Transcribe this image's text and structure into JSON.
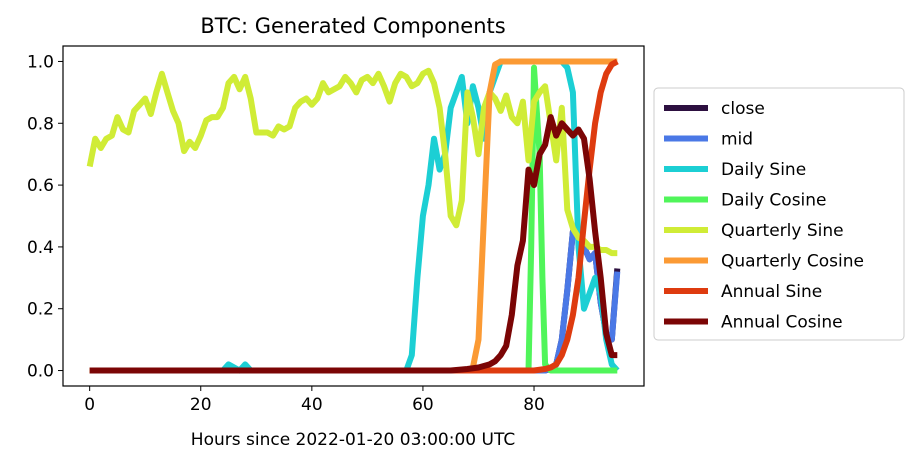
{
  "chart_data": {
    "type": "line",
    "title": "BTC: Generated Components",
    "xlabel": "Hours since 2022-01-20 03:00:00 UTC",
    "ylabel": "",
    "xlim": [
      -4.8,
      99.8
    ],
    "ylim": [
      -0.05,
      1.05
    ],
    "xticks": [
      "0",
      "20",
      "40",
      "60",
      "80"
    ],
    "yticks": [
      "0.0",
      "0.2",
      "0.4",
      "0.6",
      "0.8",
      "1.0"
    ],
    "legend_position": "right-outside",
    "grid": false,
    "series": [
      {
        "name": "close",
        "color": "#2d1040",
        "points": [
          [
            0,
            0
          ],
          [
            10,
            0
          ],
          [
            20,
            0
          ],
          [
            30,
            0
          ],
          [
            40,
            0
          ],
          [
            50,
            0
          ],
          [
            60,
            0
          ],
          [
            70,
            0
          ],
          [
            78,
            0
          ],
          [
            82,
            0
          ],
          [
            83,
            0.005
          ],
          [
            84,
            0.02
          ],
          [
            85,
            0.1
          ],
          [
            86,
            0.26
          ],
          [
            87,
            0.45
          ],
          [
            88,
            0.43
          ],
          [
            89,
            0.4
          ],
          [
            90,
            0.36
          ],
          [
            91,
            0.38
          ],
          [
            92,
            0.22
          ],
          [
            93,
            0.12
          ],
          [
            94,
            0.1
          ],
          [
            95,
            0.33
          ]
        ]
      },
      {
        "name": "mid",
        "color": "#4a78e6",
        "points": [
          [
            0,
            0
          ],
          [
            10,
            0
          ],
          [
            20,
            0
          ],
          [
            30,
            0
          ],
          [
            40,
            0
          ],
          [
            50,
            0
          ],
          [
            60,
            0
          ],
          [
            70,
            0
          ],
          [
            78,
            0
          ],
          [
            82,
            0
          ],
          [
            83,
            0.005
          ],
          [
            84,
            0.02
          ],
          [
            85,
            0.1
          ],
          [
            86,
            0.26
          ],
          [
            87,
            0.45
          ],
          [
            88,
            0.43
          ],
          [
            89,
            0.4
          ],
          [
            90,
            0.36
          ],
          [
            91,
            0.38
          ],
          [
            92,
            0.22
          ],
          [
            93,
            0.12
          ],
          [
            94,
            0.1
          ],
          [
            95,
            0.32
          ]
        ]
      },
      {
        "name": "Daily Sine",
        "color": "#1ccfd4",
        "points": [
          [
            0,
            0
          ],
          [
            24,
            0
          ],
          [
            25,
            0.02
          ],
          [
            26,
            0.01
          ],
          [
            27,
            0
          ],
          [
            28,
            0.02
          ],
          [
            29,
            0
          ],
          [
            40,
            0
          ],
          [
            57,
            0
          ],
          [
            58,
            0.05
          ],
          [
            59,
            0.3
          ],
          [
            60,
            0.5
          ],
          [
            61,
            0.6
          ],
          [
            62,
            0.75
          ],
          [
            63,
            0.65
          ],
          [
            64,
            0.7
          ],
          [
            65,
            0.85
          ],
          [
            66,
            0.9
          ],
          [
            67,
            0.95
          ],
          [
            68,
            0.8
          ],
          [
            69,
            0.92
          ],
          [
            70,
            0.85
          ],
          [
            71,
            0.75
          ],
          [
            72,
            0.9
          ],
          [
            73,
            0.95
          ],
          [
            74,
            1.0
          ],
          [
            80,
            1.0
          ],
          [
            85,
            1.0
          ],
          [
            86,
            0.98
          ],
          [
            87,
            0.9
          ],
          [
            88,
            0.4
          ],
          [
            89,
            0.2
          ],
          [
            90,
            0.25
          ],
          [
            91,
            0.3
          ],
          [
            92,
            0.25
          ],
          [
            93,
            0.1
          ],
          [
            94,
            0.02
          ],
          [
            95,
            0
          ]
        ]
      },
      {
        "name": "Daily Cosine",
        "color": "#50f55a",
        "points": [
          [
            0,
            0
          ],
          [
            20,
            0
          ],
          [
            40,
            0
          ],
          [
            60,
            0
          ],
          [
            70,
            0
          ],
          [
            79,
            0
          ],
          [
            79.5,
            0.4
          ],
          [
            80,
            0.98
          ],
          [
            81,
            0.7
          ],
          [
            81.5,
            0.3
          ],
          [
            82,
            0.02
          ],
          [
            83,
            0
          ],
          [
            90,
            0
          ],
          [
            95,
            0
          ]
        ]
      },
      {
        "name": "Quarterly Sine",
        "color": "#d0ec36",
        "points": [
          [
            0,
            0.66
          ],
          [
            1,
            0.75
          ],
          [
            2,
            0.72
          ],
          [
            3,
            0.75
          ],
          [
            4,
            0.76
          ],
          [
            5,
            0.82
          ],
          [
            6,
            0.78
          ],
          [
            7,
            0.77
          ],
          [
            8,
            0.84
          ],
          [
            9,
            0.86
          ],
          [
            10,
            0.88
          ],
          [
            11,
            0.83
          ],
          [
            12,
            0.9
          ],
          [
            13,
            0.96
          ],
          [
            14,
            0.9
          ],
          [
            15,
            0.84
          ],
          [
            16,
            0.8
          ],
          [
            17,
            0.71
          ],
          [
            18,
            0.74
          ],
          [
            19,
            0.72
          ],
          [
            20,
            0.76
          ],
          [
            21,
            0.81
          ],
          [
            22,
            0.82
          ],
          [
            23,
            0.82
          ],
          [
            24,
            0.85
          ],
          [
            25,
            0.93
          ],
          [
            26,
            0.95
          ],
          [
            27,
            0.91
          ],
          [
            28,
            0.95
          ],
          [
            29,
            0.88
          ],
          [
            30,
            0.77
          ],
          [
            31,
            0.77
          ],
          [
            32,
            0.77
          ],
          [
            33,
            0.76
          ],
          [
            34,
            0.79
          ],
          [
            35,
            0.78
          ],
          [
            36,
            0.79
          ],
          [
            37,
            0.85
          ],
          [
            38,
            0.87
          ],
          [
            39,
            0.88
          ],
          [
            40,
            0.86
          ],
          [
            41,
            0.88
          ],
          [
            42,
            0.93
          ],
          [
            43,
            0.9
          ],
          [
            44,
            0.91
          ],
          [
            45,
            0.92
          ],
          [
            46,
            0.95
          ],
          [
            47,
            0.93
          ],
          [
            48,
            0.9
          ],
          [
            49,
            0.94
          ],
          [
            50,
            0.95
          ],
          [
            51,
            0.93
          ],
          [
            52,
            0.96
          ],
          [
            53,
            0.92
          ],
          [
            54,
            0.87
          ],
          [
            55,
            0.93
          ],
          [
            56,
            0.96
          ],
          [
            57,
            0.95
          ],
          [
            58,
            0.92
          ],
          [
            59,
            0.93
          ],
          [
            60,
            0.96
          ],
          [
            61,
            0.97
          ],
          [
            62,
            0.93
          ],
          [
            63,
            0.85
          ],
          [
            64,
            0.7
          ],
          [
            65,
            0.5
          ],
          [
            66,
            0.47
          ],
          [
            67,
            0.55
          ],
          [
            68,
            0.9
          ],
          [
            69,
            0.82
          ],
          [
            70,
            0.7
          ],
          [
            71,
            0.85
          ],
          [
            72,
            0.9
          ],
          [
            73,
            0.88
          ],
          [
            74,
            0.84
          ],
          [
            75,
            0.89
          ],
          [
            76,
            0.82
          ],
          [
            77,
            0.8
          ],
          [
            78,
            0.87
          ],
          [
            79,
            0.68
          ],
          [
            80,
            0.87
          ],
          [
            81,
            0.9
          ],
          [
            82,
            0.92
          ],
          [
            83,
            0.8
          ],
          [
            84,
            0.68
          ],
          [
            85,
            0.85
          ],
          [
            86,
            0.52
          ],
          [
            87,
            0.46
          ],
          [
            88,
            0.43
          ],
          [
            89,
            0.42
          ],
          [
            90,
            0.4
          ],
          [
            91,
            0.4
          ],
          [
            92,
            0.39
          ],
          [
            93,
            0.39
          ],
          [
            94,
            0.38
          ],
          [
            95,
            0.38
          ]
        ]
      },
      {
        "name": "Quarterly Cosine",
        "color": "#fb9a34",
        "points": [
          [
            0,
            0
          ],
          [
            20,
            0
          ],
          [
            40,
            0
          ],
          [
            60,
            0
          ],
          [
            68,
            0
          ],
          [
            69,
            0.01
          ],
          [
            70,
            0.1
          ],
          [
            71,
            0.5
          ],
          [
            72,
            0.9
          ],
          [
            73,
            0.99
          ],
          [
            74,
            1.0
          ],
          [
            80,
            1.0
          ],
          [
            90,
            1.0
          ],
          [
            95,
            1.0
          ]
        ]
      },
      {
        "name": "Annual Sine",
        "color": "#de3b0f",
        "points": [
          [
            0,
            0
          ],
          [
            20,
            0
          ],
          [
            40,
            0
          ],
          [
            60,
            0
          ],
          [
            70,
            0
          ],
          [
            80,
            0
          ],
          [
            82,
            0.005
          ],
          [
            83,
            0.01
          ],
          [
            84,
            0.02
          ],
          [
            85,
            0.05
          ],
          [
            86,
            0.1
          ],
          [
            87,
            0.18
          ],
          [
            88,
            0.3
          ],
          [
            89,
            0.48
          ],
          [
            90,
            0.65
          ],
          [
            91,
            0.8
          ],
          [
            92,
            0.9
          ],
          [
            93,
            0.96
          ],
          [
            94,
            0.99
          ],
          [
            95,
            1.0
          ]
        ]
      },
      {
        "name": "Annual Cosine",
        "color": "#7b0505",
        "points": [
          [
            0,
            0
          ],
          [
            20,
            0
          ],
          [
            40,
            0
          ],
          [
            60,
            0
          ],
          [
            65,
            0
          ],
          [
            68,
            0.005
          ],
          [
            70,
            0.01
          ],
          [
            72,
            0.02
          ],
          [
            73,
            0.03
          ],
          [
            74,
            0.05
          ],
          [
            75,
            0.08
          ],
          [
            76,
            0.18
          ],
          [
            77,
            0.34
          ],
          [
            78,
            0.42
          ],
          [
            79,
            0.65
          ],
          [
            80,
            0.6
          ],
          [
            81,
            0.7
          ],
          [
            82,
            0.73
          ],
          [
            83,
            0.82
          ],
          [
            84,
            0.76
          ],
          [
            85,
            0.8
          ],
          [
            86,
            0.78
          ],
          [
            87,
            0.76
          ],
          [
            88,
            0.78
          ],
          [
            89,
            0.75
          ],
          [
            90,
            0.62
          ],
          [
            91,
            0.45
          ],
          [
            92,
            0.3
          ],
          [
            93,
            0.12
          ],
          [
            94,
            0.05
          ],
          [
            95,
            0.05
          ]
        ]
      }
    ]
  }
}
